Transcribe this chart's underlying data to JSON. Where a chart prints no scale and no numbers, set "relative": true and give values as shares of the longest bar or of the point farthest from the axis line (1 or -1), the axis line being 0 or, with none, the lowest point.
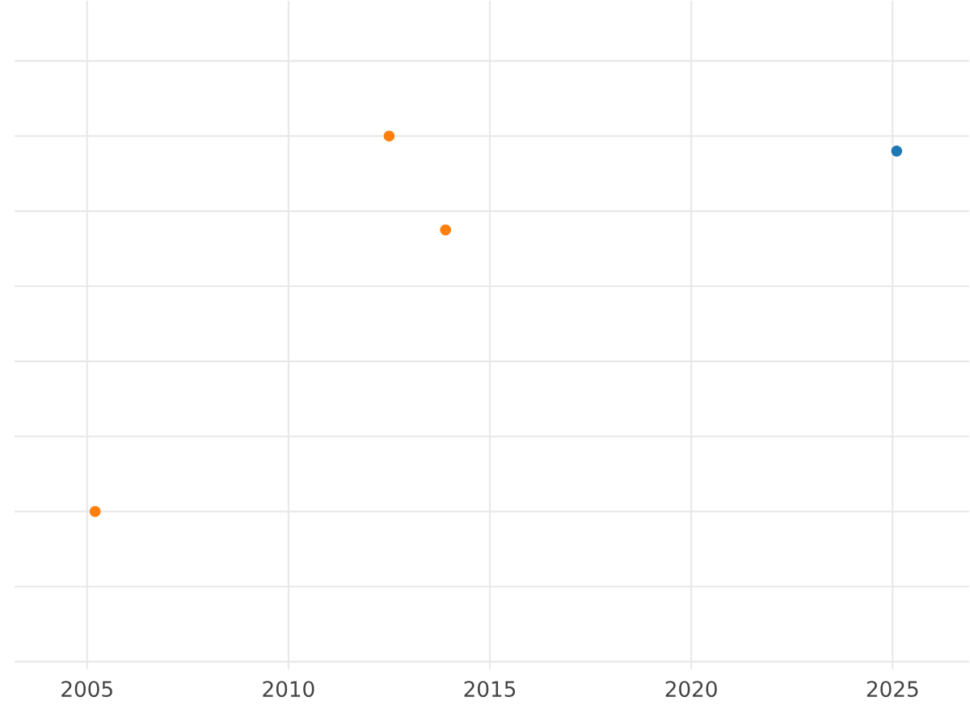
{
  "chart_data": {
    "type": "scatter",
    "relative": true,
    "grid": true,
    "xlim": [
      2003.2,
      2026.9
    ],
    "xticks": [
      2005,
      2010,
      2015,
      2020,
      2025
    ],
    "series": [
      {
        "color": "#ff7f0e",
        "x": [
          2005.2,
          2012.5,
          2013.9
        ],
        "values": [
          0,
          1,
          0.75
        ]
      },
      {
        "color": "#1f77b4",
        "x": [
          2025.1
        ],
        "values": [
          0.96
        ]
      }
    ]
  }
}
